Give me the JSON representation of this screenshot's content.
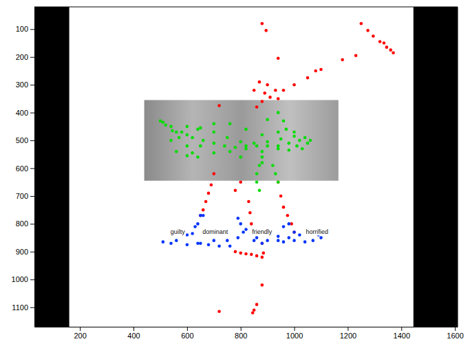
{
  "chart_data": {
    "type": "scatter",
    "xlim": [
      30,
      1610
    ],
    "ylim": [
      20,
      1170
    ],
    "xticks": [
      200,
      400,
      600,
      800,
      1000,
      1200,
      1400,
      1600
    ],
    "yticks": [
      100,
      200,
      300,
      400,
      500,
      600,
      700,
      800,
      900,
      1000,
      1100
    ],
    "grid": false,
    "tick_labels": true,
    "screen_mask_x": [
      [
        30,
        160
      ],
      [
        1445,
        1610
      ]
    ],
    "stimulus_image": {
      "x": [
        440,
        1165
      ],
      "y": [
        355,
        645
      ]
    },
    "annotations": [
      {
        "text": "guilty",
        "x": 565,
        "y": 830
      },
      {
        "text": "dominant",
        "x": 705,
        "y": 830
      },
      {
        "text": "friendly",
        "x": 880,
        "y": 830
      },
      {
        "text": "horrified",
        "x": 1085,
        "y": 830
      }
    ],
    "series": [
      {
        "color": "#ff0000",
        "marker": "circle",
        "x": [
          880,
          895,
          940,
          1250,
          1275,
          1295,
          1320,
          1335,
          1345,
          1360,
          1370,
          1230,
          1180,
          1100,
          1080,
          1050,
          1000,
          870,
          900,
          930,
          960,
          850,
          890,
          910,
          940,
          880,
          860,
          720,
          700,
          690,
          680,
          670,
          660,
          650,
          940,
          950,
          960,
          975,
          990,
          1000,
          830,
          835,
          840,
          780,
          800,
          820,
          840,
          860,
          880,
          885,
          880,
          880,
          860,
          850,
          845,
          720,
          800,
          780
        ],
        "y": [
          80,
          105,
          205,
          80,
          105,
          125,
          145,
          150,
          165,
          175,
          185,
          195,
          210,
          245,
          250,
          275,
          300,
          290,
          300,
          320,
          320,
          320,
          330,
          345,
          350,
          360,
          380,
          375,
          620,
          660,
          690,
          720,
          750,
          770,
          650,
          700,
          740,
          770,
          800,
          830,
          720,
          760,
          800,
          900,
          905,
          908,
          910,
          915,
          920,
          905,
          870,
          1020,
          1090,
          1110,
          1120,
          1115,
          650,
          680
        ]
      },
      {
        "color": "#00dd00",
        "marker": "circle",
        "x": [
          500,
          520,
          545,
          570,
          600,
          620,
          640,
          600,
          560,
          540,
          560,
          600,
          650,
          700,
          750,
          800,
          850,
          900,
          950,
          1000,
          1020,
          1010,
          980,
          940,
          900,
          860,
          820,
          780,
          740,
          700,
          660,
          620,
          580,
          540,
          510,
          600,
          650,
          700,
          760,
          820,
          880,
          940,
          980,
          1000,
          970,
          940,
          880,
          820,
          760,
          700,
          640,
          880,
          870,
          860,
          860,
          870,
          880,
          920,
          930,
          940,
          1040,
          1050,
          1060,
          1030,
          940,
          960,
          800,
          900
        ],
        "y": [
          430,
          445,
          465,
          490,
          520,
          545,
          560,
          555,
          540,
          500,
          470,
          450,
          455,
          470,
          490,
          505,
          510,
          505,
          495,
          485,
          500,
          520,
          535,
          530,
          520,
          520,
          520,
          525,
          520,
          510,
          500,
          490,
          470,
          450,
          435,
          480,
          520,
          545,
          540,
          530,
          540,
          520,
          510,
          470,
          460,
          470,
          480,
          460,
          440,
          440,
          460,
          560,
          590,
          620,
          650,
          680,
          580,
          590,
          620,
          650,
          490,
          510,
          500,
          530,
          400,
          430,
          560,
          425
        ]
      },
      {
        "color": "#0033ff",
        "marker": "circle",
        "x": [
          650,
          630,
          600,
          560,
          510,
          540,
          600,
          650,
          700,
          750,
          790,
          810,
          800,
          790,
          820,
          860,
          900,
          940,
          980,
          1020,
          1060,
          1090,
          1100,
          1070,
          1040,
          1000,
          960,
          940,
          960,
          980,
          1000,
          850,
          880,
          760,
          720,
          680,
          640,
          620,
          640,
          660
        ],
        "y": [
          770,
          810,
          840,
          860,
          865,
          870,
          875,
          870,
          860,
          860,
          850,
          830,
          800,
          780,
          820,
          850,
          860,
          860,
          850,
          840,
          830,
          840,
          850,
          860,
          865,
          860,
          865,
          845,
          810,
          800,
          830,
          860,
          870,
          880,
          880,
          875,
          870,
          835,
          800,
          770
        ]
      }
    ]
  }
}
